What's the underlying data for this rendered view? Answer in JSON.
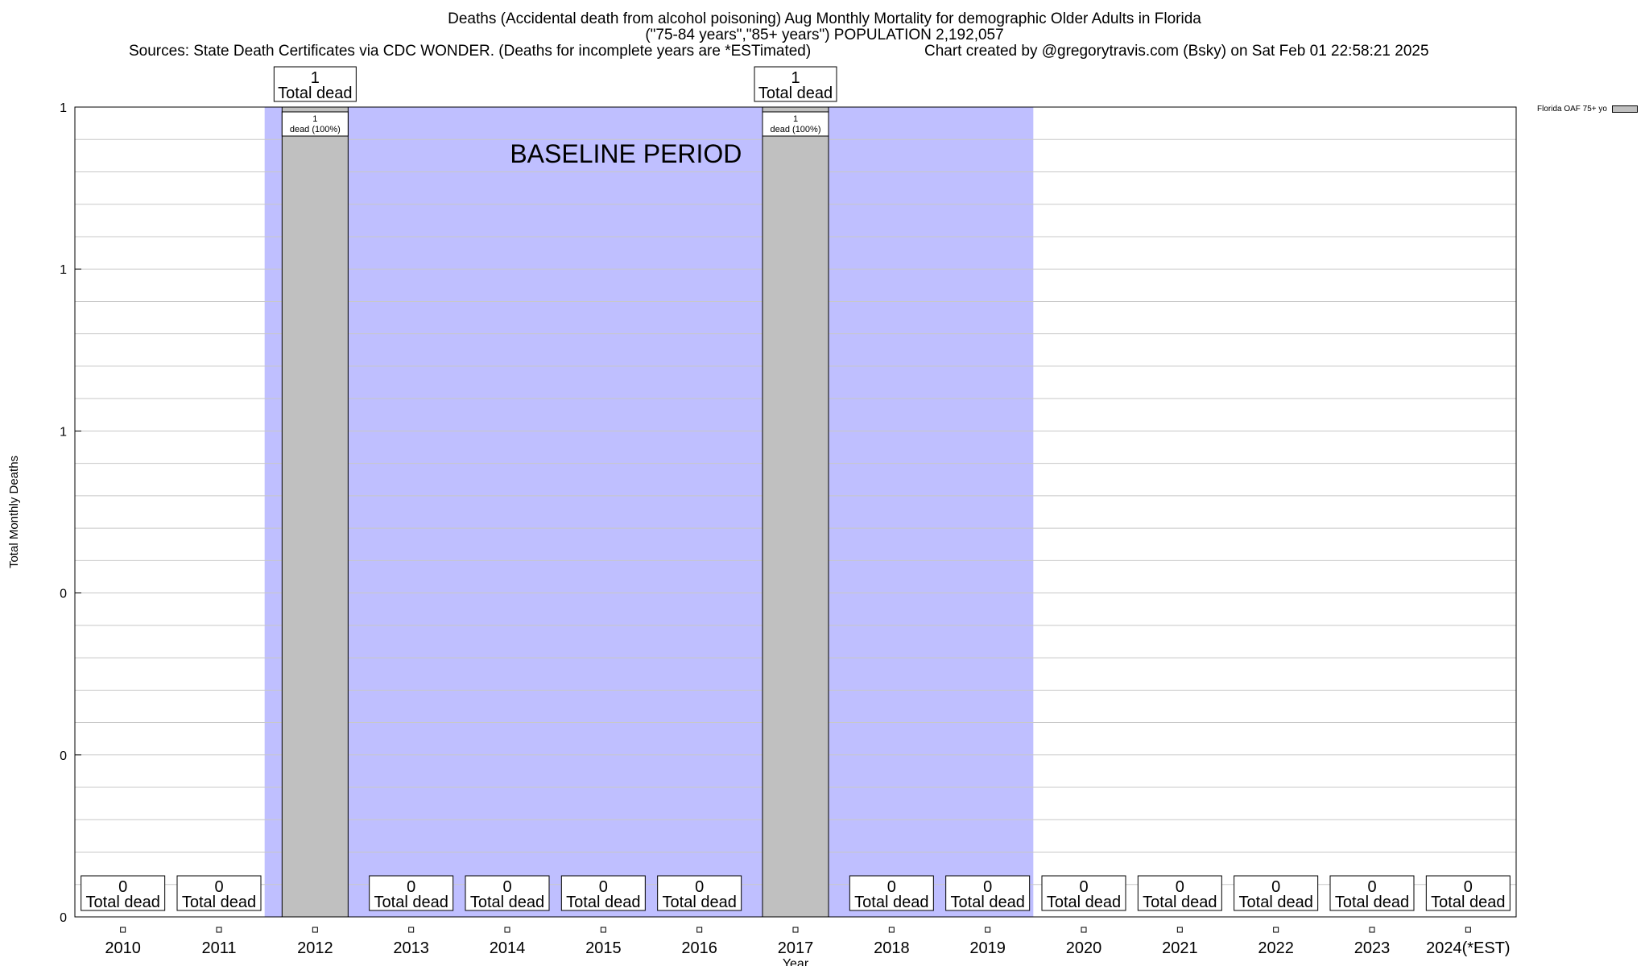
{
  "chart_data": {
    "type": "bar",
    "title": "Deaths (Accidental death from alcohol poisoning) Aug Monthly Mortality for demographic Older Adults in Florida",
    "subtitle": "(\"75-84 years\",\"85+ years\") POPULATION 2,192,057",
    "source": "Sources: State Death Certificates via CDC WONDER. (Deaths for incomplete years are *ESTimated)",
    "credit": "Chart created by @gregorytravis.com (Bsky) on Sat Feb 01 22:58:21 2025",
    "xlabel": "Year",
    "ylabel": "Total Monthly Deaths",
    "categories": [
      "2010",
      "2011",
      "2012",
      "2013",
      "2014",
      "2015",
      "2016",
      "2017",
      "2018",
      "2019",
      "2020",
      "2021",
      "2022",
      "2023",
      "2024(*EST)"
    ],
    "series": [
      {
        "name": "Florida OAF 75+ yo",
        "values": [
          0,
          0,
          1,
          0,
          0,
          0,
          0,
          1,
          0,
          0,
          0,
          0,
          0,
          0,
          0
        ],
        "color": "#c0c0c0"
      }
    ],
    "ylim": [
      0,
      1
    ],
    "ytick_labels": [
      "0",
      "0",
      "0",
      "1",
      "1",
      "1"
    ],
    "grid": true,
    "legend_position": "top-right",
    "baseline_period": {
      "label": "BASELINE PERIOD",
      "start": "2012",
      "end": "2019",
      "color": "#bfbfff"
    },
    "bar_labels": {
      "top_suffix": "Total dead",
      "inner_pct": "dead (100%)",
      "zero_suffix": "Total dead"
    }
  }
}
